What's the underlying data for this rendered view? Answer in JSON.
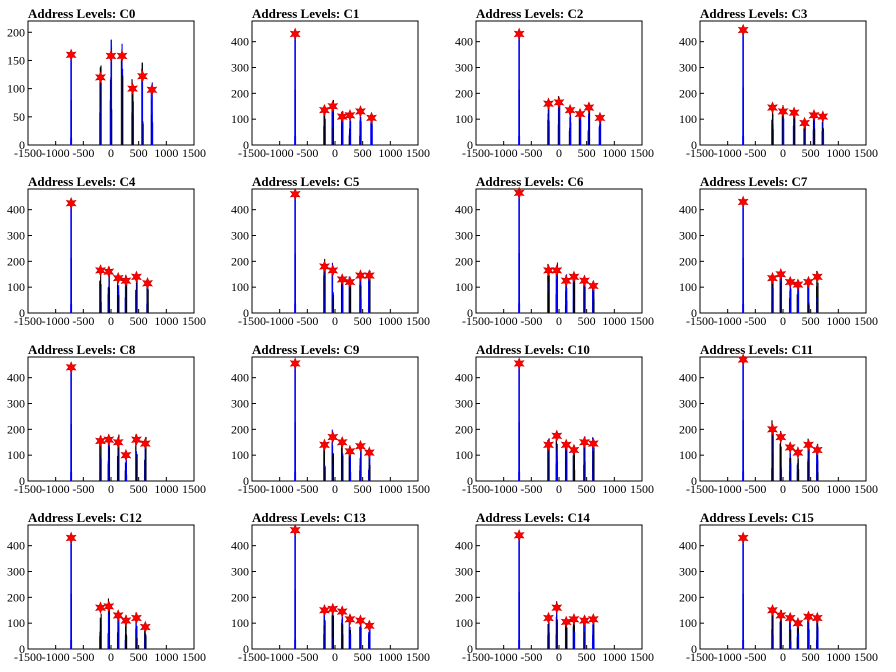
{
  "layout": {
    "rows": 4,
    "cols": 4
  },
  "colors": {
    "background": "#ffffff",
    "axis": "#000000",
    "blue_series": "#0000ff",
    "black_series": "#000000",
    "marker": "#ff0000",
    "marker_edge": "#cc0000"
  },
  "chart_data": [
    {
      "type": "bar",
      "title": "Address Levels: C0",
      "xlim": [
        -1500,
        1500
      ],
      "ylim": [
        0,
        220
      ],
      "xticks": [
        -1500,
        -1000,
        -500,
        0,
        500,
        1000,
        1500
      ],
      "yticks": [
        0,
        50,
        100,
        150,
        200
      ],
      "peaks": [
        {
          "x": -720,
          "y": 160
        },
        {
          "x": -190,
          "y": 120
        },
        {
          "x": 0,
          "y": 158
        },
        {
          "x": 200,
          "y": 158
        },
        {
          "x": 390,
          "y": 100
        },
        {
          "x": 570,
          "y": 122
        },
        {
          "x": 740,
          "y": 98
        }
      ]
    },
    {
      "type": "bar",
      "title": "Address Levels: C1",
      "xlim": [
        -1500,
        1500
      ],
      "ylim": [
        0,
        480
      ],
      "xticks": [
        -1500,
        -1000,
        -500,
        0,
        500,
        1000,
        1500
      ],
      "yticks": [
        0,
        100,
        200,
        300,
        400
      ],
      "peaks": [
        {
          "x": -720,
          "y": 430
        },
        {
          "x": -190,
          "y": 135
        },
        {
          "x": -40,
          "y": 150
        },
        {
          "x": 130,
          "y": 110
        },
        {
          "x": 270,
          "y": 115
        },
        {
          "x": 460,
          "y": 130
        },
        {
          "x": 660,
          "y": 105
        }
      ]
    },
    {
      "type": "bar",
      "title": "Address Levels: C2",
      "xlim": [
        -1500,
        1500
      ],
      "ylim": [
        0,
        480
      ],
      "xticks": [
        -1500,
        -1000,
        -500,
        0,
        500,
        1000,
        1500
      ],
      "yticks": [
        0,
        100,
        200,
        300,
        400
      ],
      "peaks": [
        {
          "x": -720,
          "y": 430
        },
        {
          "x": -190,
          "y": 160
        },
        {
          "x": 0,
          "y": 165
        },
        {
          "x": 200,
          "y": 135
        },
        {
          "x": 380,
          "y": 120
        },
        {
          "x": 540,
          "y": 145
        },
        {
          "x": 740,
          "y": 105
        }
      ]
    },
    {
      "type": "bar",
      "title": "Address Levels: C3",
      "xlim": [
        -1500,
        1500
      ],
      "ylim": [
        0,
        480
      ],
      "xticks": [
        -1500,
        -1000,
        -500,
        0,
        500,
        1000,
        1500
      ],
      "yticks": [
        0,
        100,
        200,
        300,
        400
      ],
      "peaks": [
        {
          "x": -720,
          "y": 445
        },
        {
          "x": -190,
          "y": 145
        },
        {
          "x": 0,
          "y": 130
        },
        {
          "x": 200,
          "y": 125
        },
        {
          "x": 390,
          "y": 85
        },
        {
          "x": 560,
          "y": 115
        },
        {
          "x": 720,
          "y": 110
        }
      ]
    },
    {
      "type": "bar",
      "title": "Address Levels: C4",
      "xlim": [
        -1500,
        1500
      ],
      "ylim": [
        0,
        480
      ],
      "xticks": [
        -1500,
        -1000,
        -500,
        0,
        500,
        1000,
        1500
      ],
      "yticks": [
        0,
        100,
        200,
        300,
        400
      ],
      "peaks": [
        {
          "x": -720,
          "y": 425
        },
        {
          "x": -190,
          "y": 165
        },
        {
          "x": -40,
          "y": 160
        },
        {
          "x": 130,
          "y": 135
        },
        {
          "x": 270,
          "y": 125
        },
        {
          "x": 460,
          "y": 140
        },
        {
          "x": 660,
          "y": 115
        }
      ]
    },
    {
      "type": "bar",
      "title": "Address Levels: C5",
      "xlim": [
        -1500,
        1500
      ],
      "ylim": [
        0,
        480
      ],
      "xticks": [
        -1500,
        -1000,
        -500,
        0,
        500,
        1000,
        1500
      ],
      "yticks": [
        0,
        100,
        200,
        300,
        400
      ],
      "peaks": [
        {
          "x": -720,
          "y": 460
        },
        {
          "x": -190,
          "y": 180
        },
        {
          "x": -40,
          "y": 165
        },
        {
          "x": 130,
          "y": 130
        },
        {
          "x": 270,
          "y": 120
        },
        {
          "x": 460,
          "y": 145
        },
        {
          "x": 620,
          "y": 145
        }
      ]
    },
    {
      "type": "bar",
      "title": "Address Levels: C6",
      "xlim": [
        -1500,
        1500
      ],
      "ylim": [
        0,
        480
      ],
      "xticks": [
        -1500,
        -1000,
        -500,
        0,
        500,
        1000,
        1500
      ],
      "yticks": [
        0,
        100,
        200,
        300,
        400
      ],
      "peaks": [
        {
          "x": -720,
          "y": 465
        },
        {
          "x": -190,
          "y": 165
        },
        {
          "x": -40,
          "y": 165
        },
        {
          "x": 130,
          "y": 125
        },
        {
          "x": 270,
          "y": 140
        },
        {
          "x": 460,
          "y": 125
        },
        {
          "x": 620,
          "y": 105
        }
      ]
    },
    {
      "type": "bar",
      "title": "Address Levels: C7",
      "xlim": [
        -1500,
        1500
      ],
      "ylim": [
        0,
        480
      ],
      "xticks": [
        -1500,
        -1000,
        -500,
        0,
        500,
        1000,
        1500
      ],
      "yticks": [
        0,
        100,
        200,
        300,
        400
      ],
      "peaks": [
        {
          "x": -720,
          "y": 430
        },
        {
          "x": -190,
          "y": 135
        },
        {
          "x": -40,
          "y": 150
        },
        {
          "x": 130,
          "y": 120
        },
        {
          "x": 270,
          "y": 110
        },
        {
          "x": 460,
          "y": 120
        },
        {
          "x": 620,
          "y": 140
        }
      ]
    },
    {
      "type": "bar",
      "title": "Address Levels: C8",
      "xlim": [
        -1500,
        1500
      ],
      "ylim": [
        0,
        480
      ],
      "xticks": [
        -1500,
        -1000,
        -500,
        0,
        500,
        1000,
        1500
      ],
      "yticks": [
        0,
        100,
        200,
        300,
        400
      ],
      "peaks": [
        {
          "x": -720,
          "y": 440
        },
        {
          "x": -190,
          "y": 155
        },
        {
          "x": -40,
          "y": 160
        },
        {
          "x": 130,
          "y": 150
        },
        {
          "x": 270,
          "y": 100
        },
        {
          "x": 460,
          "y": 160
        },
        {
          "x": 620,
          "y": 145
        }
      ]
    },
    {
      "type": "bar",
      "title": "Address Levels: C9",
      "xlim": [
        -1500,
        1500
      ],
      "ylim": [
        0,
        480
      ],
      "xticks": [
        -1500,
        -1000,
        -500,
        0,
        500,
        1000,
        1500
      ],
      "yticks": [
        0,
        100,
        200,
        300,
        400
      ],
      "peaks": [
        {
          "x": -720,
          "y": 455
        },
        {
          "x": -190,
          "y": 140
        },
        {
          "x": -40,
          "y": 170
        },
        {
          "x": 130,
          "y": 150
        },
        {
          "x": 270,
          "y": 115
        },
        {
          "x": 460,
          "y": 135
        },
        {
          "x": 620,
          "y": 110
        }
      ]
    },
    {
      "type": "bar",
      "title": "Address Levels: C10",
      "xlim": [
        -1500,
        1500
      ],
      "ylim": [
        0,
        480
      ],
      "xticks": [
        -1500,
        -1000,
        -500,
        0,
        500,
        1000,
        1500
      ],
      "yticks": [
        0,
        100,
        200,
        300,
        400
      ],
      "peaks": [
        {
          "x": -720,
          "y": 455
        },
        {
          "x": -190,
          "y": 140
        },
        {
          "x": -40,
          "y": 175
        },
        {
          "x": 130,
          "y": 140
        },
        {
          "x": 270,
          "y": 120
        },
        {
          "x": 460,
          "y": 150
        },
        {
          "x": 620,
          "y": 145
        }
      ]
    },
    {
      "type": "bar",
      "title": "Address Levels: C11",
      "xlim": [
        -1500,
        1500
      ],
      "ylim": [
        0,
        480
      ],
      "xticks": [
        -1500,
        -1000,
        -500,
        0,
        500,
        1000,
        1500
      ],
      "yticks": [
        0,
        100,
        200,
        300,
        400
      ],
      "peaks": [
        {
          "x": -720,
          "y": 470
        },
        {
          "x": -190,
          "y": 200
        },
        {
          "x": -40,
          "y": 170
        },
        {
          "x": 130,
          "y": 130
        },
        {
          "x": 270,
          "y": 110
        },
        {
          "x": 460,
          "y": 140
        },
        {
          "x": 620,
          "y": 120
        }
      ]
    },
    {
      "type": "bar",
      "title": "Address Levels: C12",
      "xlim": [
        -1500,
        1500
      ],
      "ylim": [
        0,
        480
      ],
      "xticks": [
        -1500,
        -1000,
        -500,
        0,
        500,
        1000,
        1500
      ],
      "yticks": [
        0,
        100,
        200,
        300,
        400
      ],
      "peaks": [
        {
          "x": -720,
          "y": 430
        },
        {
          "x": -190,
          "y": 160
        },
        {
          "x": -40,
          "y": 165
        },
        {
          "x": 130,
          "y": 130
        },
        {
          "x": 270,
          "y": 110
        },
        {
          "x": 460,
          "y": 120
        },
        {
          "x": 620,
          "y": 85
        }
      ]
    },
    {
      "type": "bar",
      "title": "Address Levels: C13",
      "xlim": [
        -1500,
        1500
      ],
      "ylim": [
        0,
        480
      ],
      "xticks": [
        -1500,
        -1000,
        -500,
        0,
        500,
        1000,
        1500
      ],
      "yticks": [
        0,
        100,
        200,
        300,
        400
      ],
      "peaks": [
        {
          "x": -720,
          "y": 460
        },
        {
          "x": -190,
          "y": 150
        },
        {
          "x": -40,
          "y": 155
        },
        {
          "x": 130,
          "y": 145
        },
        {
          "x": 270,
          "y": 115
        },
        {
          "x": 460,
          "y": 110
        },
        {
          "x": 620,
          "y": 90
        }
      ]
    },
    {
      "type": "bar",
      "title": "Address Levels: C14",
      "xlim": [
        -1500,
        1500
      ],
      "ylim": [
        0,
        480
      ],
      "xticks": [
        -1500,
        -1000,
        -500,
        0,
        500,
        1000,
        1500
      ],
      "yticks": [
        0,
        100,
        200,
        300,
        400
      ],
      "peaks": [
        {
          "x": -720,
          "y": 440
        },
        {
          "x": -190,
          "y": 120
        },
        {
          "x": -40,
          "y": 160
        },
        {
          "x": 130,
          "y": 105
        },
        {
          "x": 270,
          "y": 115
        },
        {
          "x": 460,
          "y": 110
        },
        {
          "x": 620,
          "y": 115
        }
      ]
    },
    {
      "type": "bar",
      "title": "Address Levels: C15",
      "xlim": [
        -1500,
        1500
      ],
      "ylim": [
        0,
        480
      ],
      "xticks": [
        -1500,
        -1000,
        -500,
        0,
        500,
        1000,
        1500
      ],
      "yticks": [
        0,
        100,
        200,
        300,
        400
      ],
      "peaks": [
        {
          "x": -720,
          "y": 430
        },
        {
          "x": -190,
          "y": 150
        },
        {
          "x": -40,
          "y": 130
        },
        {
          "x": 130,
          "y": 120
        },
        {
          "x": 270,
          "y": 100
        },
        {
          "x": 460,
          "y": 125
        },
        {
          "x": 620,
          "y": 120
        }
      ]
    }
  ]
}
